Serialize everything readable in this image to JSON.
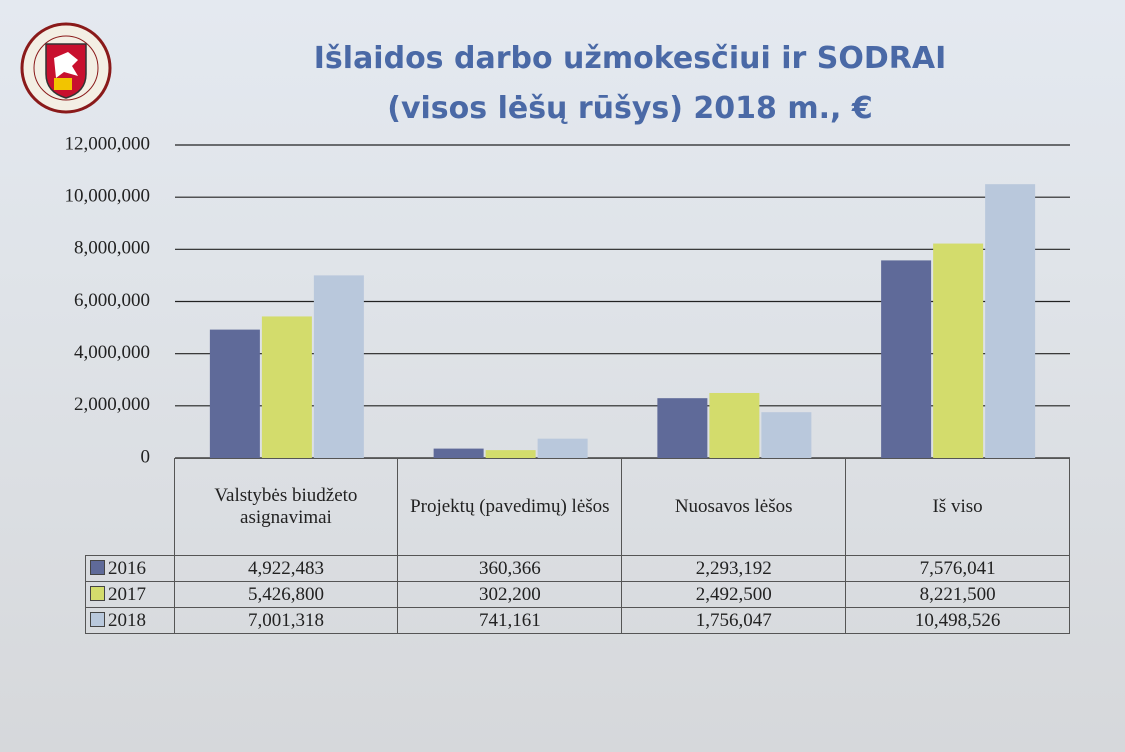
{
  "chart_data": {
    "type": "bar",
    "title": "Išlaidos darbo užmokesčiui ir SODRAI",
    "subtitle": "(visos lėšų rūšys) 2018 m., €",
    "categories": [
      "Valstybės biudžeto asignavimai",
      "Projektų (pavedimų) lėšos",
      "Nuosavos lėšos",
      "Iš viso"
    ],
    "series": [
      {
        "name": "2016",
        "color": "#5f6a99",
        "values": [
          4922483,
          360366,
          2293192,
          7576041
        ],
        "value_labels": [
          "4,922,483",
          "360,366",
          "2,293,192",
          "7,576,041"
        ]
      },
      {
        "name": "2017",
        "color": "#d3dc6c",
        "values": [
          5426800,
          302200,
          2492500,
          8221500
        ],
        "value_labels": [
          "5,426,800",
          "302,200",
          "2,492,500",
          "8,221,500"
        ]
      },
      {
        "name": "2018",
        "color": "#b9c8dc",
        "values": [
          7001318,
          741161,
          1756047,
          10498526
        ],
        "value_labels": [
          "7,001,318",
          "741,161",
          "1,756,047",
          "10,498,526"
        ]
      }
    ],
    "ylim": [
      0,
      12000000
    ],
    "yticks": [
      0,
      {
        "value": 2000000,
        "label": "2,000,000"
      },
      {
        "value": 4000000,
        "label": "4,000,000"
      },
      {
        "value": 6000000,
        "label": "6,000,000"
      },
      {
        "value": 8000000,
        "label": "8,000,000"
      },
      {
        "value": 10000000,
        "label": "10,000,000"
      },
      {
        "value": 12000000,
        "label": "12,000,000"
      }
    ],
    "grid": true
  }
}
